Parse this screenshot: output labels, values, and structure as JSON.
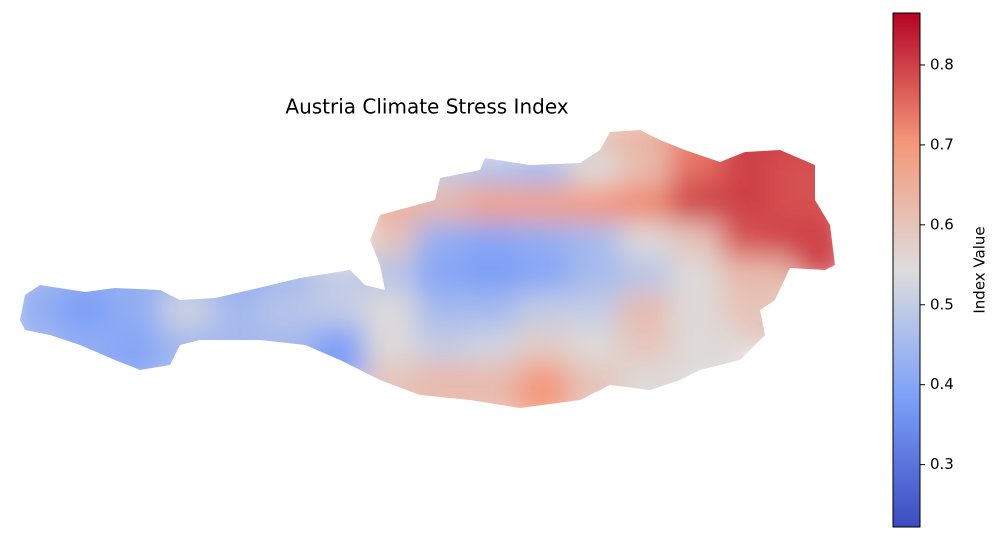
{
  "chart_data": {
    "type": "raster-map",
    "title": "Austria Climate Stress Index",
    "colorbar_label": "Index Value",
    "colormap": "coolwarm",
    "vlim": [
      0.222,
      0.865
    ],
    "vticks": [
      0.3,
      0.4,
      0.5,
      0.6,
      0.7,
      0.8
    ],
    "values": [
      [
        null,
        null,
        null,
        null,
        null,
        null,
        null,
        null,
        null,
        null,
        null,
        0.6,
        0.64,
        0.72,
        0.8,
        0.8
      ],
      [
        null,
        null,
        null,
        null,
        null,
        null,
        null,
        null,
        0.5,
        0.47,
        0.45,
        0.55,
        0.62,
        0.75,
        0.8,
        0.78
      ],
      [
        null,
        null,
        null,
        null,
        null,
        null,
        null,
        0.65,
        0.63,
        0.68,
        0.68,
        0.7,
        0.72,
        0.8,
        0.8,
        0.78
      ],
      [
        null,
        null,
        null,
        null,
        null,
        null,
        null,
        0.6,
        0.42,
        0.4,
        0.42,
        0.45,
        0.55,
        0.6,
        0.78,
        0.8
      ],
      [
        0.45,
        0.42,
        0.42,
        0.45,
        0.42,
        0.45,
        0.5,
        0.48,
        0.4,
        0.38,
        0.4,
        0.45,
        0.48,
        0.55,
        0.62,
        null
      ],
      [
        0.42,
        0.38,
        0.42,
        0.52,
        0.45,
        0.48,
        0.5,
        0.55,
        0.45,
        0.45,
        0.5,
        0.5,
        0.62,
        0.55,
        0.6,
        null
      ],
      [
        0.45,
        0.42,
        0.4,
        0.45,
        0.45,
        0.45,
        0.38,
        0.55,
        0.5,
        0.52,
        0.58,
        0.55,
        0.6,
        0.55,
        null,
        null
      ],
      [
        null,
        null,
        null,
        null,
        null,
        null,
        null,
        0.6,
        0.62,
        0.62,
        0.7,
        0.6,
        0.55,
        null,
        null,
        null
      ]
    ]
  }
}
